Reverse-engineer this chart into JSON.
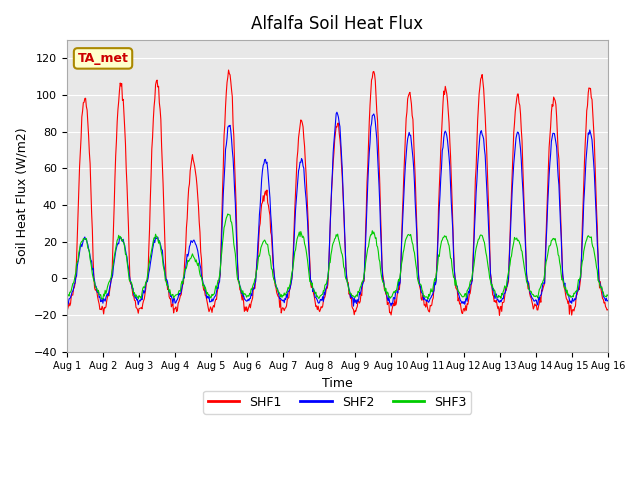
{
  "title": "Alfalfa Soil Heat Flux",
  "ylabel": "Soil Heat Flux (W/m2)",
  "xlabel": "Time",
  "xlim": [
    0,
    15
  ],
  "ylim": [
    -40,
    130
  ],
  "yticks": [
    -40,
    -20,
    0,
    20,
    40,
    60,
    80,
    100,
    120
  ],
  "background_color": "#e8e8e8",
  "fig_color": "#ffffff",
  "legend_labels": [
    "SHF1",
    "SHF2",
    "SHF3"
  ],
  "legend_colors": [
    "#ff0000",
    "#0000ff",
    "#00cc00"
  ],
  "annotation_text": "TA_met",
  "annotation_color": "#cc0000",
  "annotation_bg": "#ffffcc",
  "n_days": 15,
  "points_per_day": 48,
  "shf1_amps": [
    99,
    105,
    107,
    65,
    113,
    48,
    85,
    84,
    113,
    102,
    104,
    110,
    100,
    99,
    104
  ],
  "shf2_amps": [
    22,
    22,
    22,
    20,
    84,
    65,
    65,
    90,
    90,
    80,
    80,
    80,
    80,
    80,
    80
  ],
  "shf3_amps": [
    22,
    23,
    23,
    12,
    35,
    20,
    25,
    23,
    25,
    24,
    23,
    23,
    22,
    22,
    23
  ],
  "shf1_neg": 17,
  "shf2_neg": 13,
  "shf3_neg": 10,
  "noise1": 1.5,
  "noise2": 1.0,
  "noise3": 0.8
}
